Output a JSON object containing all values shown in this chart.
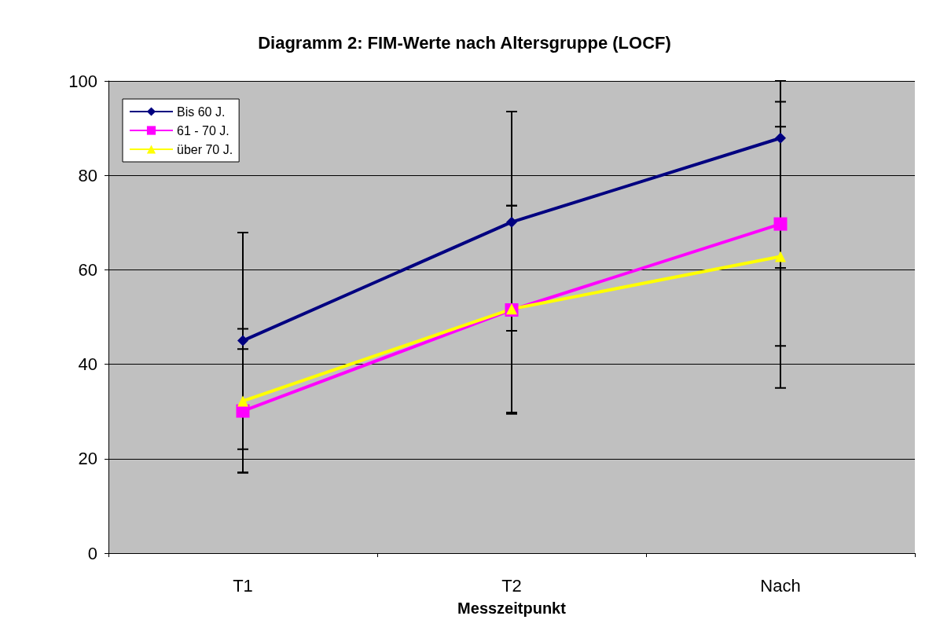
{
  "chart_data": {
    "type": "line",
    "title": "Diagramm 2: FIM-Werte nach Altersgruppe (LOCF)",
    "xlabel": "Messzeitpunkt",
    "categories": [
      "T1",
      "T2",
      "Nach"
    ],
    "series": [
      {
        "name": "Bis 60 J.",
        "color": "#000080",
        "marker": "diamond",
        "values": [
          45,
          70.1,
          87.9
        ],
        "errors": [
          [
            22,
            67.9
          ],
          [
            47.1,
            93.5
          ],
          [
            60.4,
            100
          ]
        ]
      },
      {
        "name": "61 - 70 J.",
        "color": "#ff00ff",
        "marker": "square",
        "values": [
          30.1,
          51.5,
          69.7
        ],
        "errors": [
          [
            17.1,
            43.2
          ],
          [
            29.5,
            73.6
          ],
          [
            43.9,
            95.6
          ]
        ]
      },
      {
        "name": "über 70 J.",
        "color": "#ffff00",
        "marker": "triangle",
        "values": [
          32.2,
          51.7,
          62.8
        ],
        "errors": [
          [
            17,
            47.5
          ],
          [
            29.8,
            73.6
          ],
          [
            35,
            90.3
          ]
        ]
      }
    ],
    "ylim": [
      0,
      100
    ],
    "yticks": [
      0,
      20,
      40,
      60,
      80,
      100
    ],
    "grid": "y",
    "legend": "top left",
    "line_style": "solid"
  }
}
